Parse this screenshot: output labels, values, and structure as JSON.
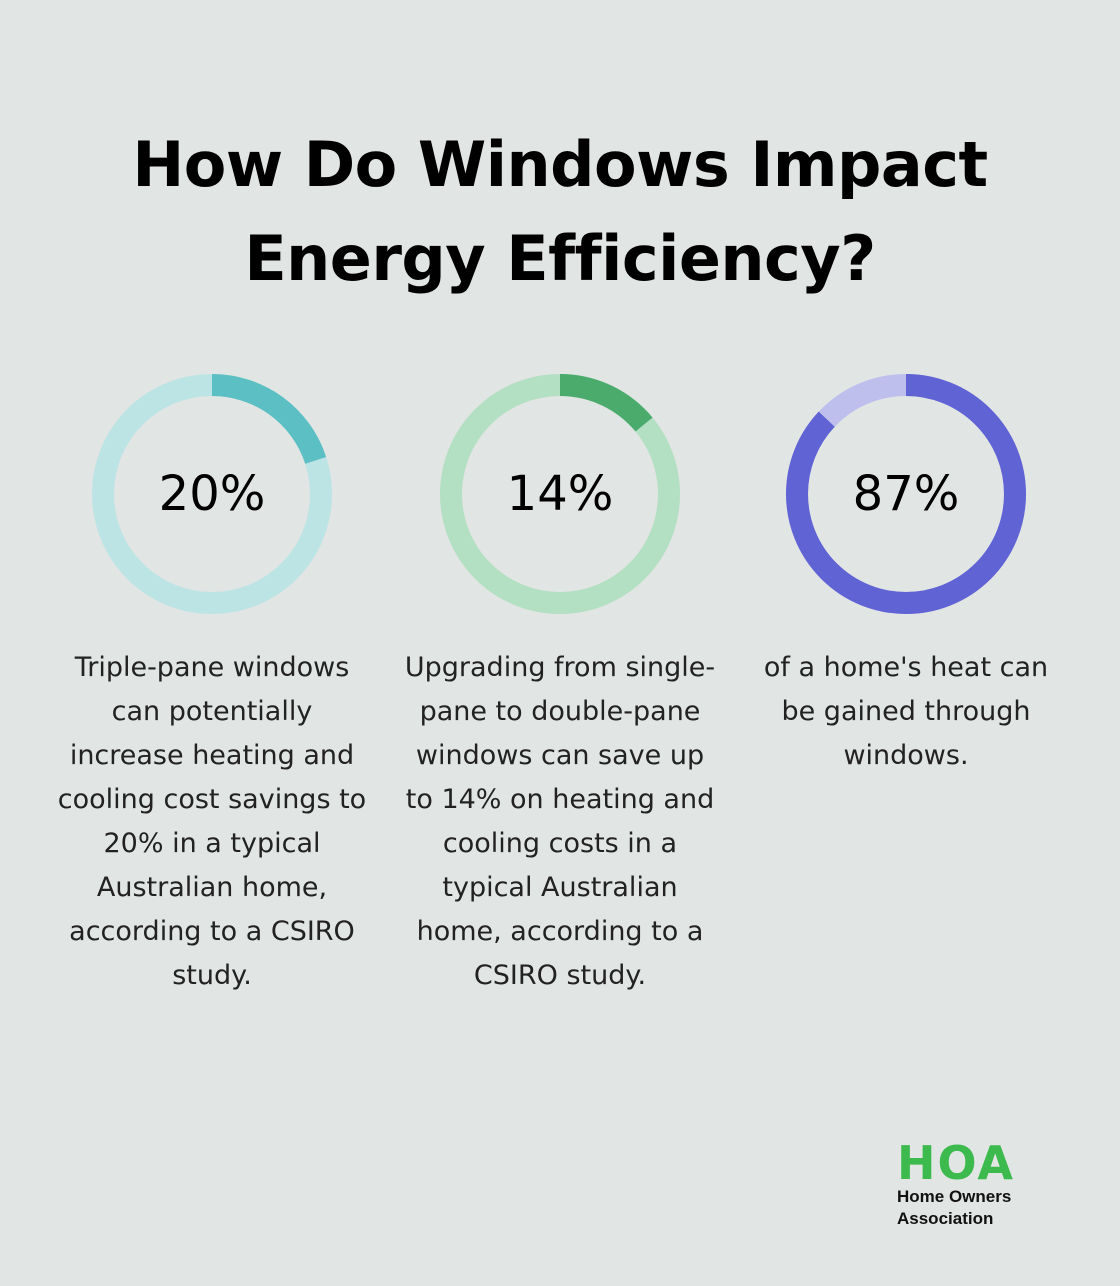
{
  "title_line1": "How Do Windows Impact",
  "title_line2": "Energy Efficiency?",
  "chart_data": {
    "type": "donut",
    "items": [
      {
        "value": 20,
        "label": "20%",
        "description": "Triple-pane windows can potentially increase heating and cooling cost savings to 20% in a typical Australian home, according to a CSIRO study.",
        "track_color": "#bde4e4",
        "fill_color": "#5bbfc4"
      },
      {
        "value": 14,
        "label": "14%",
        "description": "Upgrading from single-pane to double-pane windows can save up to 14% on heating and cooling costs in a typical Australian home, according to a CSIRO study.",
        "track_color": "#b3dfc2",
        "fill_color": "#4aab6c"
      },
      {
        "value": 87,
        "label": "87%",
        "description": "of a home's heat can be gained through windows.",
        "track_color": "#bfbfee",
        "fill_color": "#5f63d3"
      }
    ]
  },
  "logo": {
    "mark": "HOA",
    "line1": "Home Owners",
    "line2": "Association",
    "color": "#3dba4e"
  }
}
